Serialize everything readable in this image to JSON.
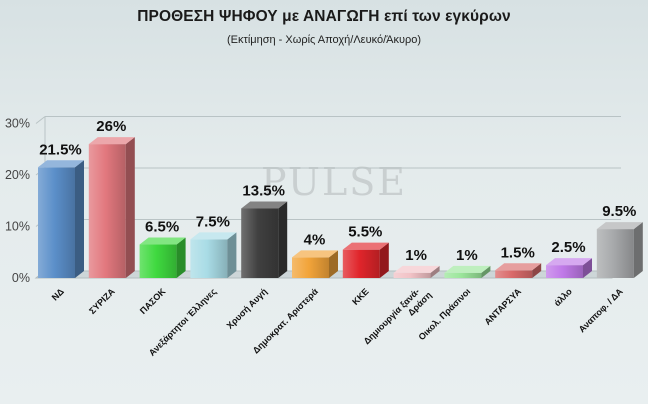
{
  "chart_data": {
    "type": "bar",
    "title": "ΠΡΟΘΕΣΗ ΨΗΦΟΥ με ΑΝΑΓΩΓΗ επί των εγκύρων",
    "subtitle": "(Εκτίμηση  -  Χωρίς Αποχή/Λευκό/Άκυρο)",
    "watermark": "PULSE",
    "categories": [
      "ΝΔ",
      "ΣΥΡΙΖΑ",
      "ΠΑΣΟΚ",
      "Ανεξάρτητοι Έλληνες",
      "Χρυσή Αυγή",
      "Δημοκρατ. Αριστερά",
      "ΚΚΕ",
      "Δημιουργία ξανά-Δράση",
      "Οικολ. Πράσινοι",
      "ΑΝΤΑΡΣΥΑ",
      "άλλο",
      "Αναποφ. / ΔΑ"
    ],
    "values": [
      21.5,
      26,
      6.5,
      7.5,
      13.5,
      4,
      5.5,
      1,
      1,
      1.5,
      2.5,
      9.5
    ],
    "value_labels": [
      "21.5%",
      "26%",
      "6.5%",
      "7.5%",
      "13.5%",
      "4%",
      "5.5%",
      "1%",
      "1%",
      "1.5%",
      "2.5%",
      "9.5%"
    ],
    "colors": [
      "#5b8fc9",
      "#e2787e",
      "#3fd93f",
      "#a9dce6",
      "#404040",
      "#f2a43a",
      "#e0252b",
      "#f2c2c6",
      "#9be69b",
      "#d96a6a",
      "#c07ae8",
      "#a7a9ab"
    ],
    "yticks": [
      "0%",
      "10%",
      "20%",
      "30%"
    ],
    "ylim": [
      0,
      30
    ],
    "grid": true,
    "xlabel": "",
    "ylabel": ""
  }
}
